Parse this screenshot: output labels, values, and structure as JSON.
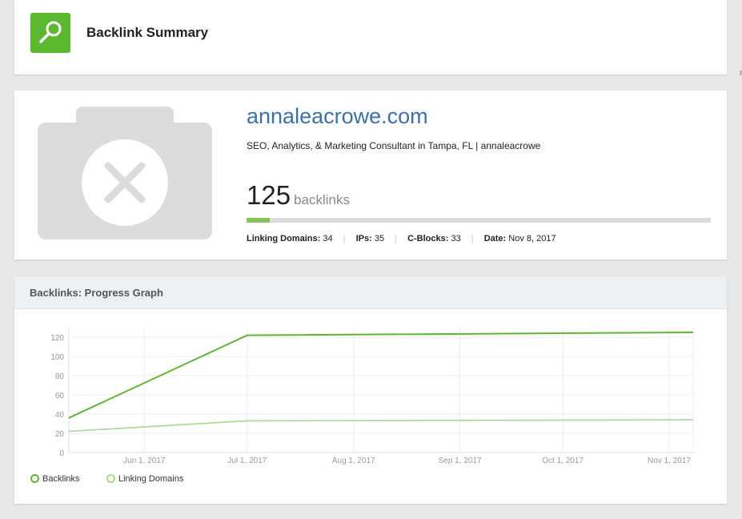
{
  "header": {
    "title": "Backlink Summary"
  },
  "summary": {
    "domain": "annaleacrowe.com",
    "description": "SEO, Analytics, & Marketing Consultant in Tampa, FL | annaleacrowe",
    "backlinks_count": "125",
    "backlinks_unit": "backlinks",
    "progress_fraction": 0.05,
    "stats": {
      "linking_domains_label": "Linking Domains:",
      "linking_domains_value": "34",
      "ips_label": "IPs:",
      "ips_value": "35",
      "cblocks_label": "C-Blocks:",
      "cblocks_value": "33",
      "date_label": "Date:",
      "date_value": "Nov 8, 2017"
    }
  },
  "graph": {
    "title": "Backlinks: Progress Graph"
  },
  "colors": {
    "brand_green": "#5cb82e",
    "backlinks_line": "#5cb82e",
    "linking_domains_line": "#a8d98c",
    "link_blue": "#3a70b0"
  },
  "icons": {
    "logo": "magnifier-icon",
    "placeholder": "broken-image-icon"
  },
  "chart_data": {
    "type": "line",
    "x": [
      "2017-05-10",
      "2017-07-01",
      "2017-11-08"
    ],
    "x_tick_labels": [
      "Jun 1, 2017",
      "Jul 1, 2017",
      "Aug 1, 2017",
      "Sep 1, 2017",
      "Oct 1, 2017",
      "Nov 1, 2017"
    ],
    "x_ticks": [
      "2017-06-01",
      "2017-07-01",
      "2017-08-01",
      "2017-09-01",
      "2017-10-01",
      "2017-11-01"
    ],
    "xlim": [
      "2017-05-10",
      "2017-11-08"
    ],
    "y_ticks": [
      0,
      20,
      40,
      60,
      80,
      100,
      120
    ],
    "ylim": [
      0,
      130
    ],
    "grid": true,
    "legend_position": "bottom-left",
    "series": [
      {
        "name": "Backlinks",
        "color": "#5cb82e",
        "values": [
          36,
          122,
          125
        ]
      },
      {
        "name": "Linking Domains",
        "color": "#a8d98c",
        "values": [
          22,
          33,
          34
        ]
      }
    ]
  }
}
